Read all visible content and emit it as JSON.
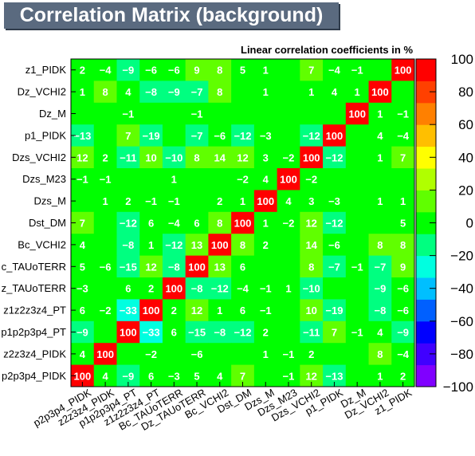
{
  "chart_data": {
    "type": "heatmap",
    "title": "Correlation Matrix (background)",
    "subtitle": "Linear correlation coefficients in %",
    "x_labels": [
      "p2p3p4_PIDK",
      "z2z3z4_PIDK",
      "p1p2p3p4_PT",
      "z1z2z3z4_PT",
      "Bc_TAUoTERR",
      "Dz_TAUoTERR",
      "Bc_VCHI2",
      "Dst_DM",
      "Dzs_M",
      "Dzs_M23",
      "Dzs_VCHI2",
      "p1_PIDK",
      "Dz_M",
      "Dz_VCHI2",
      "z1_PIDK"
    ],
    "y_labels_top_to_bottom": [
      "z1_PIDK",
      "Dz_VCHI2",
      "Dz_M",
      "p1_PIDK",
      "Dzs_VCHI2",
      "Dzs_M23",
      "Dzs_M",
      "Dst_DM",
      "Bc_VCHI2",
      "Bc_TAUoTERR",
      "Dz_TAUoTERR",
      "z1z2z3z4_PT",
      "p1p2p3p4_PT",
      "z2z3z4_PIDK",
      "p2p3p4_PIDK"
    ],
    "y_labels_shown": [
      "z1_PIDK",
      "Dz_VCHI2",
      "Dz_M",
      "p1_PIDK",
      "Dzs_VCHI2",
      "Dzs_M23",
      "Dzs_M",
      "Dst_DM",
      "Bc_VCHI2",
      "c_TAUoTERR",
      "z_TAUoTERR",
      "z1z2z3z4_PT",
      "p1p2p3p4_PT",
      "z2z3z4_PIDK",
      "p2p3p4_PIDK"
    ],
    "values_top_to_bottom": [
      [
        2,
        -4,
        -9,
        -6,
        -6,
        9,
        8,
        5,
        1,
        null,
        7,
        -4,
        -1,
        null,
        100
      ],
      [
        1,
        8,
        4,
        -8,
        -9,
        -7,
        8,
        null,
        1,
        null,
        1,
        4,
        1,
        100,
        null
      ],
      [
        null,
        null,
        -1,
        null,
        null,
        -1,
        null,
        null,
        null,
        null,
        null,
        null,
        100,
        1,
        -1
      ],
      [
        -13,
        null,
        7,
        -19,
        null,
        -7,
        -6,
        -12,
        -3,
        null,
        -12,
        100,
        null,
        4,
        -4
      ],
      [
        12,
        2,
        -11,
        10,
        -10,
        8,
        14,
        12,
        3,
        -2,
        100,
        -12,
        null,
        1,
        7
      ],
      [
        -1,
        -1,
        null,
        null,
        1,
        null,
        null,
        -2,
        4,
        100,
        -2,
        null,
        null,
        null,
        null
      ],
      [
        null,
        1,
        2,
        -1,
        -1,
        null,
        2,
        1,
        100,
        4,
        3,
        -3,
        null,
        1,
        1
      ],
      [
        7,
        null,
        -12,
        6,
        -4,
        6,
        8,
        100,
        1,
        -2,
        12,
        -12,
        null,
        null,
        5
      ],
      [
        4,
        null,
        -8,
        1,
        -12,
        13,
        100,
        8,
        2,
        null,
        14,
        -6,
        null,
        8,
        8
      ],
      [
        5,
        -6,
        -15,
        12,
        -8,
        100,
        13,
        6,
        null,
        null,
        8,
        -7,
        -1,
        -7,
        9
      ],
      [
        -3,
        null,
        6,
        2,
        100,
        -8,
        -12,
        -4,
        -1,
        1,
        -10,
        null,
        null,
        -9,
        -6
      ],
      [
        6,
        -2,
        -33,
        100,
        2,
        12,
        1,
        6,
        -1,
        null,
        10,
        -19,
        null,
        -8,
        -6
      ],
      [
        -9,
        null,
        100,
        -33,
        6,
        -15,
        -8,
        -12,
        2,
        null,
        -11,
        7,
        -1,
        4,
        -9
      ],
      [
        4,
        100,
        null,
        -2,
        null,
        -6,
        null,
        null,
        1,
        -1,
        2,
        null,
        null,
        8,
        -4
      ],
      [
        100,
        4,
        -9,
        6,
        -3,
        5,
        4,
        7,
        null,
        -1,
        12,
        -13,
        null,
        1,
        2
      ]
    ],
    "zlim": [
      -100,
      100
    ],
    "colorbar_ticks": [
      "100",
      "80",
      "60",
      "40",
      "20",
      "0",
      "−20",
      "−40",
      "−60",
      "−80",
      "−100"
    ],
    "colorbar_tick_values": [
      100,
      80,
      60,
      40,
      20,
      0,
      -20,
      -40,
      -60,
      -80,
      -100
    ],
    "palette": [
      "#8000ff",
      "#4000ff",
      "#0000ff",
      "#0060ff",
      "#00bfff",
      "#00ffe0",
      "#00ff80",
      "#00ff00",
      "#60ff00",
      "#b0ff00",
      "#ffff00",
      "#ffbf00",
      "#ff8000",
      "#ff4000",
      "#ff0000"
    ],
    "colorscale": "rainbow",
    "grid": false
  }
}
